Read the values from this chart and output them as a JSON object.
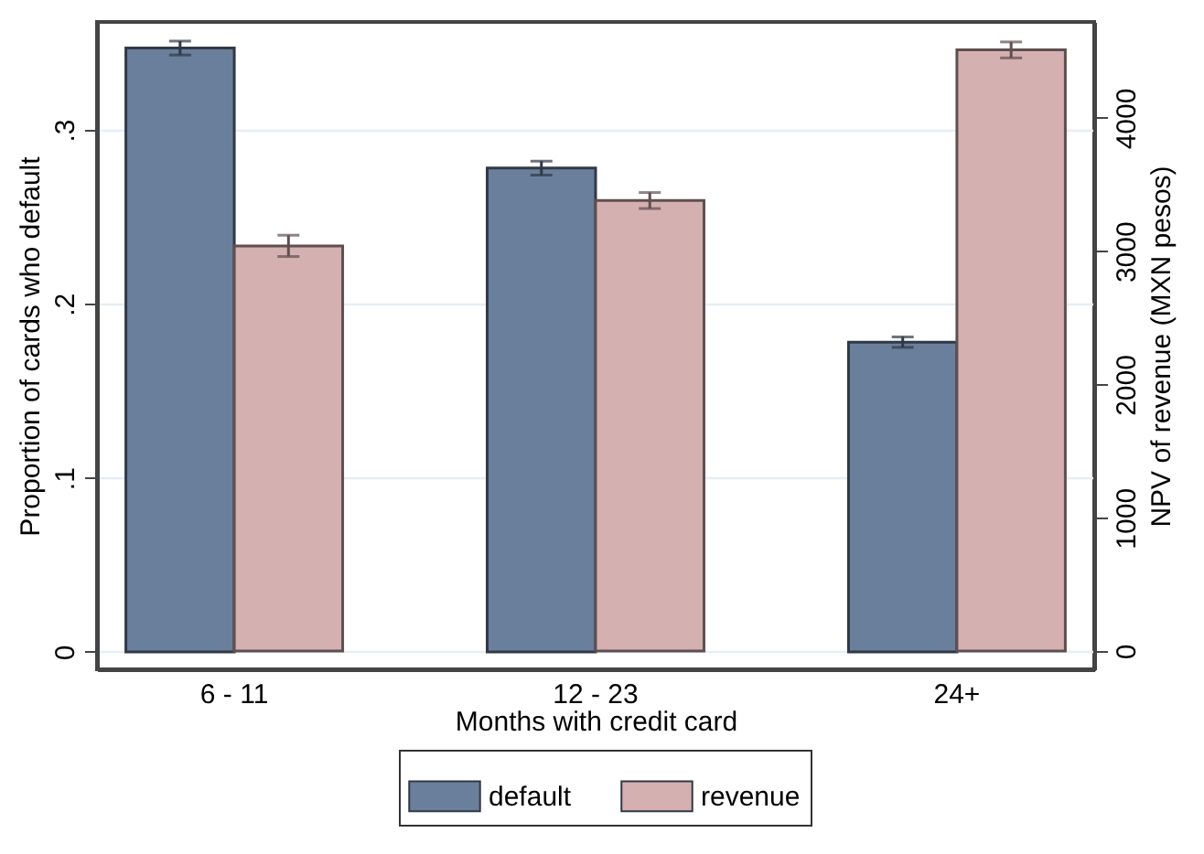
{
  "chart_data": {
    "type": "bar",
    "xlabel": "Months with credit card",
    "ylabel": "Proportion of cards who default",
    "y2label": "NPV of revenue (MXN pesos)",
    "categories": [
      "6 - 11",
      "12 - 23",
      "24+"
    ],
    "series": [
      {
        "name": "default",
        "color": "#6a7f9b",
        "values": [
          0.347,
          0.278,
          0.178
        ],
        "errors": [
          0.004,
          0.004,
          0.003
        ]
      },
      {
        "name": "revenue",
        "color": "#d4b0b1",
        "values": [
          3040,
          3380,
          4510
        ],
        "errors": [
          80,
          60,
          60
        ],
        "axis": "y2"
      }
    ],
    "ylim": [
      -0.01,
      0.362
    ],
    "yticks": [
      0,
      {
        "value": 0.1,
        "label": ".1"
      },
      {
        "value": 0.2,
        "label": ".2"
      },
      {
        "value": 0.3,
        "label": ".3"
      }
    ],
    "y2lim": [
      -137,
      4720
    ],
    "y2ticks": [
      0,
      1000,
      2000,
      3000,
      4000
    ],
    "grid": "y",
    "legend": "bottom"
  }
}
